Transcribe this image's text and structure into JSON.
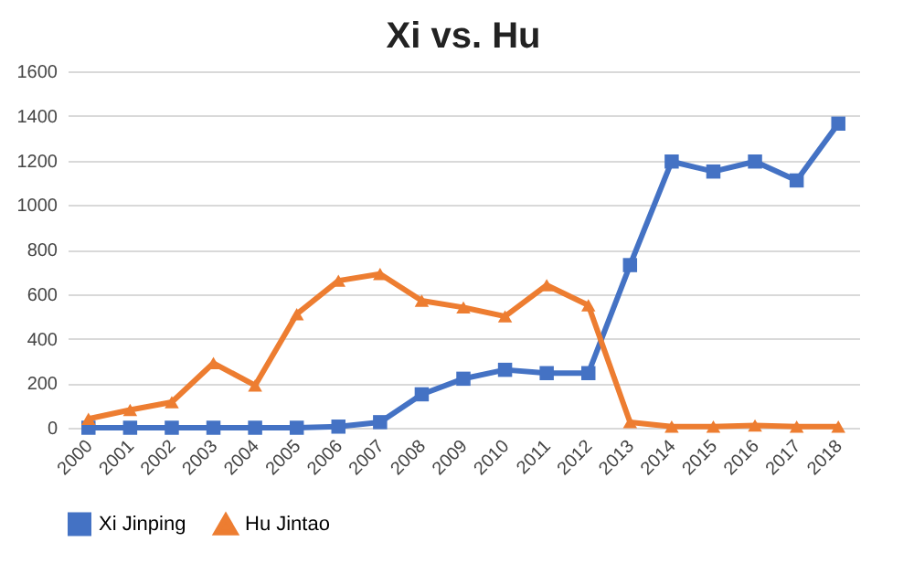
{
  "chart_data": {
    "type": "line",
    "title": "Xi vs. Hu",
    "categories": [
      "2000",
      "2001",
      "2002",
      "2003",
      "2004",
      "2005",
      "2006",
      "2007",
      "2008",
      "2009",
      "2010",
      "2011",
      "2012",
      "2013",
      "2014",
      "2015",
      "2016",
      "2017",
      "2018"
    ],
    "series": [
      {
        "name": "Xi Jinping",
        "color": "#4472c4",
        "marker": "square",
        "values": [
          0,
          0,
          0,
          0,
          0,
          0,
          5,
          25,
          150,
          220,
          260,
          245,
          245,
          730,
          1195,
          1150,
          1195,
          1110,
          1365
        ]
      },
      {
        "name": "Hu Jintao",
        "color": "#ed7d31",
        "marker": "triangle",
        "values": [
          40,
          80,
          115,
          290,
          190,
          510,
          660,
          690,
          570,
          540,
          500,
          640,
          550,
          25,
          5,
          5,
          10,
          5,
          5
        ]
      }
    ],
    "ylim": [
      0,
      1600
    ],
    "yticks": [
      0,
      200,
      400,
      600,
      800,
      1000,
      1200,
      1400,
      1600
    ],
    "grid": "y",
    "legend": "bottom",
    "line_style": "solid"
  }
}
